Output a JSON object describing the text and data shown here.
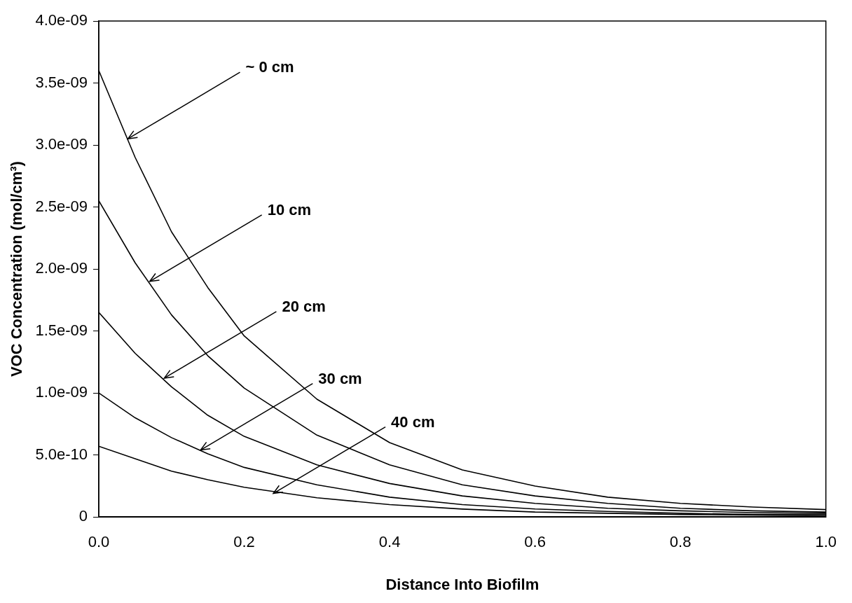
{
  "chart_data": {
    "type": "line",
    "xlabel": "Distance Into Biofilm",
    "ylabel": "VOC Concentration (mol/cm³)",
    "x": [
      0,
      0.05,
      0.1,
      0.15,
      0.2,
      0.3,
      0.4,
      0.5,
      0.6,
      0.7,
      0.8,
      0.9,
      1.0
    ],
    "series": [
      {
        "color": "#000000",
        "values": [
          3.6e-09,
          2.9e-09,
          2.3e-09,
          1.85e-09,
          1.46e-09,
          9.5e-10,
          6e-10,
          3.8e-10,
          2.5e-10,
          1.6e-10,
          1.1e-10,
          8e-11,
          6e-11
        ]
      },
      {
        "color": "#000000",
        "values": [
          2.55e-09,
          2.05e-09,
          1.63e-09,
          1.3e-09,
          1.04e-09,
          6.6e-10,
          4.2e-10,
          2.6e-10,
          1.7e-10,
          1.1e-10,
          7e-11,
          5e-11,
          4e-11
        ]
      },
      {
        "color": "#000000",
        "values": [
          1.65e-09,
          1.32e-09,
          1.05e-09,
          8.2e-10,
          6.5e-10,
          4.2e-10,
          2.7e-10,
          1.7e-10,
          1.1e-10,
          7e-11,
          5e-11,
          3.5e-11,
          3e-11
        ]
      },
      {
        "color": "#000000",
        "values": [
          1e-09,
          8e-10,
          6.4e-10,
          5.1e-10,
          4e-10,
          2.6e-10,
          1.6e-10,
          1e-10,
          6.5e-11,
          4.5e-11,
          3e-11,
          2e-11,
          2e-11
        ]
      },
      {
        "color": "#000000",
        "values": [
          5.7e-10,
          4.7e-10,
          3.7e-10,
          3e-10,
          2.4e-10,
          1.55e-10,
          1e-10,
          6.4e-11,
          4e-11,
          3e-11,
          2e-11,
          1.5e-11,
          1e-11
        ]
      }
    ],
    "xlim": [
      0,
      1
    ],
    "xticks": [
      {
        "value": 0,
        "label": "0.0"
      },
      0.2,
      0.4,
      0.6,
      0.8,
      {
        "value": 1,
        "label": "1.0"
      }
    ],
    "ylim": [
      0,
      4e-09
    ],
    "yticks": [
      0,
      {
        "value": 5e-10,
        "label": "5.0e-10"
      },
      {
        "value": 1e-09,
        "label": "1.0e-09"
      },
      {
        "value": 1.5e-09,
        "label": "1.5e-09"
      },
      {
        "value": 2e-09,
        "label": "2.0e-09"
      },
      {
        "value": 2.5e-09,
        "label": "2.5e-09"
      },
      {
        "value": 3e-09,
        "label": "3.0e-09"
      },
      {
        "value": 3.5e-09,
        "label": "3.5e-09"
      },
      {
        "value": 4e-09,
        "label": "4.0e-09"
      }
    ],
    "annotations": [
      {
        "text": "~ 0 cm",
        "x": 0.04,
        "y": 3.05e-09
      },
      {
        "text": "10 cm",
        "x": 0.07,
        "y": 1.9e-09
      },
      {
        "text": "20 cm",
        "x": 0.09,
        "y": 1.12e-09
      },
      {
        "text": "30 cm",
        "x": 0.14,
        "y": 5.4e-10
      },
      {
        "text": "40 cm",
        "x": 0.24,
        "y": 1.9e-10
      }
    ],
    "grid": false,
    "legend": false,
    "marker": "none",
    "line_style": "solid"
  }
}
